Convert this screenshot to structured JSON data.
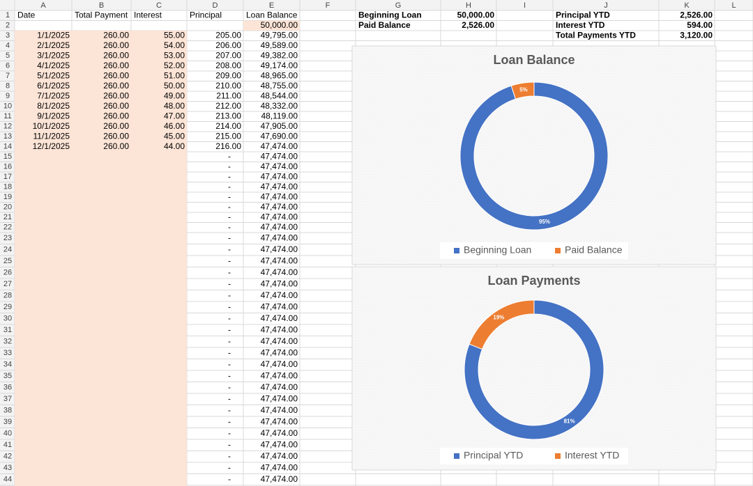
{
  "column_headers": [
    "A",
    "B",
    "C",
    "D",
    "E",
    "F",
    "G",
    "H",
    "I",
    "J",
    "K",
    "L"
  ],
  "row_numbers": [
    1,
    2,
    3,
    4,
    5,
    6,
    7,
    8,
    9,
    10,
    11,
    12,
    13,
    14,
    15,
    16,
    17,
    18,
    19,
    20,
    21,
    22,
    23,
    24,
    25,
    26,
    27,
    28,
    29,
    30,
    31,
    32,
    33,
    34,
    35,
    36,
    37,
    38,
    39,
    40,
    41,
    42,
    43,
    44
  ],
  "loan_table": {
    "headers": [
      "Date",
      "Total Payment",
      "Interest",
      "Principal",
      "Loan Balance"
    ],
    "opening_balance": "50,000.00",
    "rows": [
      [
        "1/1/2025",
        "260.00",
        "55.00",
        "205.00",
        "49,795.00"
      ],
      [
        "2/1/2025",
        "260.00",
        "54.00",
        "206.00",
        "49,589.00"
      ],
      [
        "3/1/2025",
        "260.00",
        "53.00",
        "207.00",
        "49,382.00"
      ],
      [
        "4/1/2025",
        "260.00",
        "52.00",
        "208.00",
        "49,174.00"
      ],
      [
        "5/1/2025",
        "260.00",
        "51.00",
        "209.00",
        "48,965.00"
      ],
      [
        "6/1/2025",
        "260.00",
        "50.00",
        "210.00",
        "48,755.00"
      ],
      [
        "7/1/2025",
        "260.00",
        "49.00",
        "211.00",
        "48,544.00"
      ],
      [
        "8/1/2025",
        "260.00",
        "48.00",
        "212.00",
        "48,332.00"
      ],
      [
        "9/1/2025",
        "260.00",
        "47.00",
        "213.00",
        "48,119.00"
      ],
      [
        "10/1/2025",
        "260.00",
        "46.00",
        "214.00",
        "47,905.00"
      ],
      [
        "11/1/2025",
        "260.00",
        "45.00",
        "215.00",
        "47,690.00"
      ],
      [
        "12/1/2025",
        "260.00",
        "44.00",
        "216.00",
        "47,474.00"
      ]
    ],
    "tail_rows": [
      [
        "-",
        "47,474.00"
      ],
      [
        "-",
        "47,474.00"
      ],
      [
        "-",
        "47,474.00"
      ],
      [
        "-",
        "47,474.00"
      ],
      [
        "-",
        "47,474.00"
      ],
      [
        "-",
        "47,474.00"
      ],
      [
        "-",
        "47,474.00"
      ],
      [
        "-",
        "47,474.00"
      ],
      [
        "-",
        "47,474.00"
      ],
      [
        "-",
        "47,474.00"
      ],
      [
        "-",
        "47,474.00"
      ],
      [
        "-",
        "47,474.00"
      ],
      [
        "-",
        "47,474.00"
      ],
      [
        "-",
        "47,474.00"
      ],
      [
        "-",
        "47,474.00"
      ],
      [
        "-",
        "47,474.00"
      ],
      [
        "-",
        "47,474.00"
      ],
      [
        "-",
        "47,474.00"
      ],
      [
        "-",
        "47,474.00"
      ],
      [
        "-",
        "47,474.00"
      ],
      [
        "-",
        "47,474.00"
      ],
      [
        "-",
        "47,474.00"
      ],
      [
        "-",
        "47,474.00"
      ],
      [
        "-",
        "47,474.00"
      ],
      [
        "-",
        "47,474.00"
      ],
      [
        "-",
        "47,474.00"
      ],
      [
        "-",
        "47,474.00"
      ],
      [
        "-",
        "47,474.00"
      ],
      [
        "-",
        "47,474.00"
      ],
      [
        "-",
        "47,474.00"
      ]
    ]
  },
  "summary_left": [
    {
      "label": "Beginning Loan",
      "value": "50,000.00"
    },
    {
      "label": "Paid Balance",
      "value": "2,526.00"
    }
  ],
  "summary_right": [
    {
      "label": "Principal YTD",
      "value": "2,526.00"
    },
    {
      "label": "Interest YTD",
      "value": "594.00"
    },
    {
      "label": "Total Payments YTD",
      "value": "3,120.00"
    }
  ],
  "chart_data": [
    {
      "type": "donut",
      "title": "Loan Balance",
      "categories": [
        "Beginning Loan",
        "Paid Balance"
      ],
      "values": [
        95,
        5
      ],
      "value_labels": [
        "95%",
        "5%"
      ],
      "colors": [
        "#4472c4",
        "#ed7d31"
      ]
    },
    {
      "type": "donut",
      "title": "Loan Payments",
      "categories": [
        "Principal YTD",
        "Interest YTD"
      ],
      "values": [
        81,
        19
      ],
      "value_labels": [
        "81%",
        "19%"
      ],
      "colors": [
        "#4472c4",
        "#ed7d31"
      ]
    }
  ]
}
